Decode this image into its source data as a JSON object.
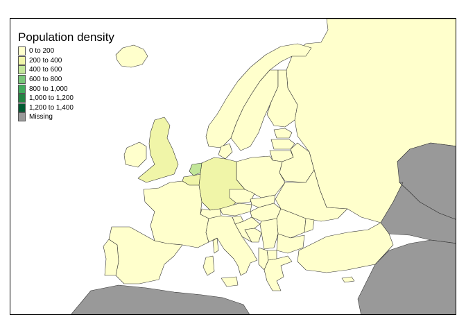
{
  "map": {
    "title": "Population density",
    "legend": [
      {
        "label": "0 to 200",
        "color": "#ffffcc"
      },
      {
        "label": "200 to 400",
        "color": "#f0f5a8"
      },
      {
        "label": "400 to 600",
        "color": "#c2e699"
      },
      {
        "label": "600 to 800",
        "color": "#78c679"
      },
      {
        "label": "800 to 1,000",
        "color": "#41ab5d"
      },
      {
        "label": "1,000 to 1,200",
        "color": "#238443"
      },
      {
        "label": "1,200 to 1,400",
        "color": "#005a32"
      },
      {
        "label": "Missing",
        "color": "#999999"
      }
    ],
    "regions": [
      {
        "name": "Iceland",
        "class": "0 to 200"
      },
      {
        "name": "Norway",
        "class": "0 to 200"
      },
      {
        "name": "Sweden",
        "class": "0 to 200"
      },
      {
        "name": "Finland",
        "class": "0 to 200"
      },
      {
        "name": "Russia",
        "class": "0 to 200"
      },
      {
        "name": "Estonia",
        "class": "0 to 200"
      },
      {
        "name": "Latvia",
        "class": "0 to 200"
      },
      {
        "name": "Lithuania",
        "class": "0 to 200"
      },
      {
        "name": "Belarus",
        "class": "0 to 200"
      },
      {
        "name": "Ukraine",
        "class": "0 to 200"
      },
      {
        "name": "Poland",
        "class": "0 to 200"
      },
      {
        "name": "Denmark",
        "class": "0 to 200"
      },
      {
        "name": "Ireland",
        "class": "0 to 200"
      },
      {
        "name": "United Kingdom",
        "class": "200 to 400"
      },
      {
        "name": "Germany",
        "class": "200 to 400"
      },
      {
        "name": "Belgium",
        "class": "200 to 400"
      },
      {
        "name": "Netherlands",
        "class": "400 to 600"
      },
      {
        "name": "France",
        "class": "0 to 200"
      },
      {
        "name": "Spain",
        "class": "0 to 200"
      },
      {
        "name": "Portugal",
        "class": "0 to 200"
      },
      {
        "name": "Italy",
        "class": "0 to 200"
      },
      {
        "name": "Switzerland",
        "class": "0 to 200"
      },
      {
        "name": "Austria",
        "class": "0 to 200"
      },
      {
        "name": "Czechia",
        "class": "0 to 200"
      },
      {
        "name": "Slovakia",
        "class": "0 to 200"
      },
      {
        "name": "Hungary",
        "class": "0 to 200"
      },
      {
        "name": "Romania",
        "class": "0 to 200"
      },
      {
        "name": "Moldova",
        "class": "0 to 200"
      },
      {
        "name": "Bulgaria",
        "class": "0 to 200"
      },
      {
        "name": "Serbia",
        "class": "0 to 200"
      },
      {
        "name": "Croatia",
        "class": "0 to 200"
      },
      {
        "name": "Bosnia and Herzegovina",
        "class": "0 to 200"
      },
      {
        "name": "Slovenia",
        "class": "0 to 200"
      },
      {
        "name": "Greece",
        "class": "0 to 200"
      },
      {
        "name": "Albania",
        "class": "0 to 200"
      },
      {
        "name": "North Macedonia",
        "class": "0 to 200"
      },
      {
        "name": "Turkey",
        "class": "0 to 200"
      },
      {
        "name": "Sardinia",
        "class": "0 to 200"
      },
      {
        "name": "Corsica",
        "class": "0 to 200"
      },
      {
        "name": "Sicily",
        "class": "0 to 200"
      },
      {
        "name": "Cyprus",
        "class": "0 to 200"
      },
      {
        "name": "Kazakhstan",
        "class": "Missing"
      },
      {
        "name": "Caucasus",
        "class": "Missing"
      },
      {
        "name": "Middle East",
        "class": "Missing"
      },
      {
        "name": "North Africa",
        "class": "Missing"
      }
    ]
  }
}
